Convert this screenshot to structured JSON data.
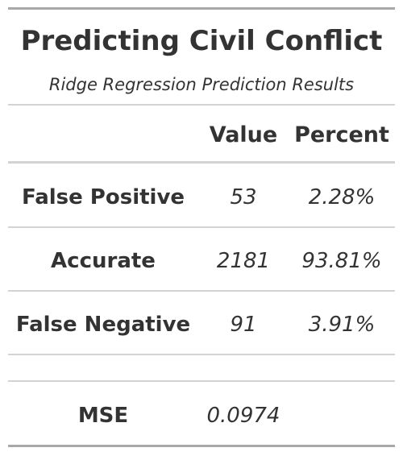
{
  "title": "Predicting Civil Conflict",
  "subtitle": "Ridge Regression Prediction Results",
  "columns": {
    "stub": "",
    "value": "Value",
    "percent": "Percent"
  },
  "rows": [
    {
      "label": "False Positive",
      "value": "53",
      "percent": "2.28%"
    },
    {
      "label": "Accurate",
      "value": "2181",
      "percent": "93.81%"
    },
    {
      "label": "False Negative",
      "value": "91",
      "percent": "3.91%"
    }
  ],
  "summary": {
    "label": "MSE",
    "value": "0.0974",
    "percent": ""
  },
  "colors": {
    "text": "#333333",
    "rule_heavy": "#a8a8a8",
    "rule_light": "#d3d3d3"
  }
}
